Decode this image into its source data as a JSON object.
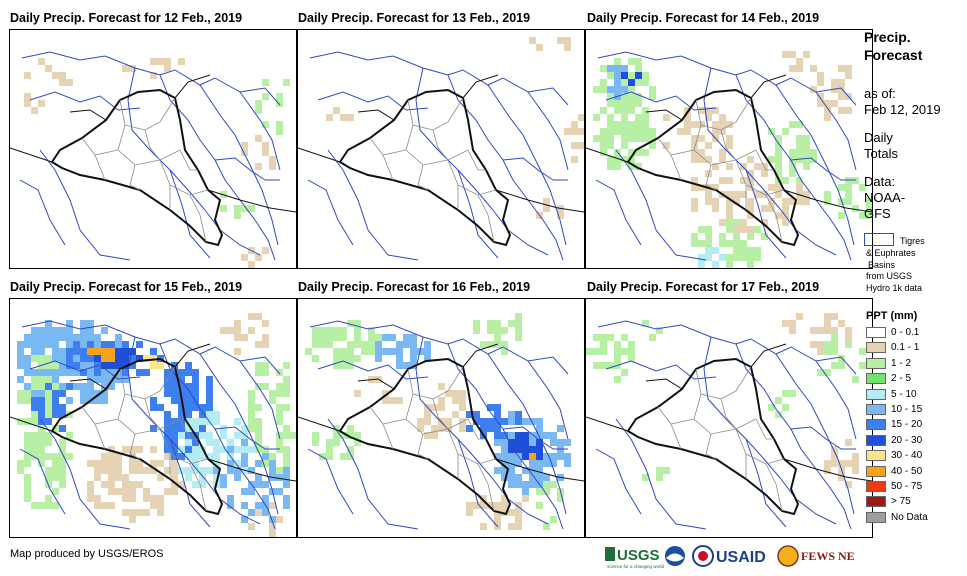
{
  "panels": [
    {
      "title": "Daily Precip. Forecast for 12 Feb., 2019"
    },
    {
      "title": "Daily Precip. Forecast for 13 Feb., 2019"
    },
    {
      "title": "Daily Precip. Forecast for 14 Feb., 2019"
    },
    {
      "title": "Daily Precip. Forecast for 15 Feb., 2019"
    },
    {
      "title": "Daily Precip. Forecast for 16 Feb., 2019"
    },
    {
      "title": "Daily Precip. Forecast for 17 Feb., 2019"
    }
  ],
  "sidebar": {
    "title_line1": "Precip.",
    "title_line2": "Forecast",
    "asof_label": "as of:",
    "asof_date": "Feb 12, 2019",
    "totals_line1": "Daily",
    "totals_line2": "Totals",
    "data_line1": "Data:",
    "data_line2": "NOAA-",
    "data_line3": "GFS",
    "basin_line1": "Tigres",
    "basin_line2": "& Euphrates",
    "basin_line3": "Basins",
    "basin_line4": "from USGS",
    "basin_line5": "Hydro 1k data"
  },
  "legend": {
    "title": "PPT (mm)",
    "items": [
      {
        "label": "0 - 0.1",
        "color": "#ffffff"
      },
      {
        "label": "0.1 - 1",
        "color": "#e6d3b3"
      },
      {
        "label": "1 - 2",
        "color": "#b7f0a4"
      },
      {
        "label": "2 - 5",
        "color": "#6fe36c"
      },
      {
        "label": "5 - 10",
        "color": "#b4ecf4"
      },
      {
        "label": "10 - 15",
        "color": "#79b8f3"
      },
      {
        "label": "15 - 20",
        "color": "#3e7ff0"
      },
      {
        "label": "20 - 30",
        "color": "#1f4fd8"
      },
      {
        "label": "30 - 40",
        "color": "#fde38a"
      },
      {
        "label": "40 - 50",
        "color": "#f7a21b"
      },
      {
        "label": "50 - 75",
        "color": "#f23a10"
      },
      {
        "label": "> 75",
        "color": "#9c1a14"
      },
      {
        "label": "No Data",
        "color": "#9e9e9e"
      }
    ]
  },
  "footer": {
    "credit": "Map produced by USGS/EROS"
  },
  "logos": {
    "usgs": "USGS",
    "usgs_tagline": "science for a changing world",
    "usaid": "USAID",
    "fews": "FEWS NET"
  }
}
